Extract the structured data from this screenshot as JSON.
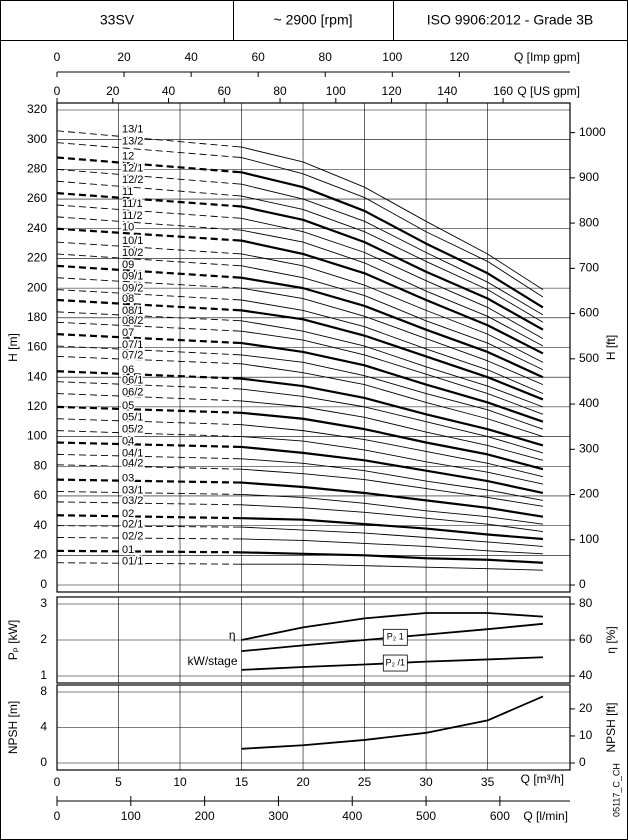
{
  "header": {
    "model": "33SV",
    "speed": "~ 2900 [rpm]",
    "standard": "ISO 9906:2012 - Grade 3B"
  },
  "code": "05117_C_CH",
  "x_axes": [
    {
      "label": "Q [Imp gpm]",
      "lim": [
        0,
        153
      ],
      "ticks": [
        0,
        20,
        40,
        60,
        80,
        100,
        120
      ],
      "position": "top"
    },
    {
      "label": "Q [US gpm]",
      "lim": [
        0,
        184
      ],
      "ticks": [
        0,
        20,
        40,
        60,
        80,
        100,
        120,
        140,
        160
      ],
      "position": "top"
    },
    {
      "label": "Q [l/min]",
      "lim": [
        0,
        695
      ],
      "ticks": [
        0,
        100,
        200,
        300,
        400,
        500,
        600
      ],
      "position": "bottom"
    }
  ],
  "chart_data": [
    {
      "type": "line",
      "ylabel": "H [m]",
      "y2label": "H [ft]",
      "x": [
        0,
        15,
        20,
        25,
        30,
        35,
        39.5
      ],
      "xlim": [
        0,
        41.7
      ],
      "xticks": [
        0,
        5,
        10,
        15,
        20,
        25,
        30,
        35
      ],
      "ylim": [
        0,
        320
      ],
      "yticks": [
        0,
        20,
        40,
        60,
        80,
        100,
        120,
        140,
        160,
        180,
        200,
        220,
        240,
        260,
        280,
        300,
        320
      ],
      "y2lim": [
        0,
        1050
      ],
      "y2ticks": [
        0,
        100,
        200,
        300,
        400,
        500,
        600,
        700,
        800,
        900,
        1000
      ],
      "grid": true,
      "color": "#000000",
      "min_flow": 15,
      "series": [
        {
          "name": "13/1",
          "weight": "thin",
          "label": "left",
          "values": [
            306,
            295,
            285,
            268,
            245,
            223,
            199
          ]
        },
        {
          "name": "13/2",
          "weight": "thin",
          "label": "left",
          "values": [
            298,
            288,
            277,
            261,
            238,
            218,
            194
          ]
        },
        {
          "name": "12",
          "weight": "bold",
          "label": "left",
          "values": [
            288,
            278,
            268,
            252,
            230,
            210,
            187
          ]
        },
        {
          "name": "12/1",
          "weight": "thin",
          "label": "left",
          "values": [
            280,
            270,
            260,
            245,
            224,
            204,
            182
          ]
        },
        {
          "name": "12/2",
          "weight": "thin",
          "label": "left",
          "values": [
            272,
            262,
            253,
            238,
            218,
            199,
            177
          ]
        },
        {
          "name": "11",
          "weight": "bold",
          "label": "left",
          "values": [
            264,
            255,
            246,
            231,
            211,
            193,
            172
          ]
        },
        {
          "name": "11/1",
          "weight": "thin",
          "label": "left",
          "values": [
            256,
            247,
            238,
            224,
            205,
            187,
            166
          ]
        },
        {
          "name": "11/2",
          "weight": "thin",
          "label": "left",
          "values": [
            248,
            239,
            231,
            217,
            198,
            181,
            161
          ]
        },
        {
          "name": "10",
          "weight": "bold",
          "label": "left",
          "values": [
            240,
            232,
            223,
            210,
            192,
            175,
            156
          ]
        },
        {
          "name": "10/1",
          "weight": "thin",
          "label": "left",
          "values": [
            231,
            223,
            215,
            202,
            185,
            169,
            150
          ]
        },
        {
          "name": "10/2",
          "weight": "thin",
          "label": "left",
          "values": [
            223,
            215,
            207,
            195,
            178,
            163,
            145
          ]
        },
        {
          "name": "09",
          "weight": "bold",
          "label": "left",
          "values": [
            215,
            207,
            200,
            188,
            172,
            157,
            140
          ]
        },
        {
          "name": "09/1",
          "weight": "thin",
          "label": "left",
          "values": [
            207,
            200,
            193,
            181,
            166,
            151,
            135
          ]
        },
        {
          "name": "09/2",
          "weight": "thin",
          "label": "left",
          "values": [
            199,
            192,
            185,
            174,
            159,
            145,
            129
          ]
        },
        {
          "name": "08",
          "weight": "bold",
          "label": "left",
          "values": [
            192,
            185,
            179,
            168,
            154,
            140,
            125
          ]
        },
        {
          "name": "08/1",
          "weight": "thin",
          "label": "left",
          "values": [
            184,
            178,
            171,
            161,
            147,
            134,
            120
          ]
        },
        {
          "name": "08/2",
          "weight": "thin",
          "label": "left",
          "values": [
            177,
            171,
            165,
            155,
            142,
            129,
            115
          ]
        },
        {
          "name": "07",
          "weight": "bold",
          "label": "left",
          "values": [
            169,
            163,
            157,
            148,
            135,
            123,
            110
          ]
        },
        {
          "name": "07/1",
          "weight": "thin",
          "label": "left",
          "values": [
            161,
            155,
            150,
            141,
            129,
            118,
            105
          ]
        },
        {
          "name": "07/2",
          "weight": "thin",
          "label": "left",
          "values": [
            154,
            149,
            143,
            135,
            123,
            112,
            100
          ]
        },
        {
          "name": "06",
          "weight": "bold",
          "label": "left",
          "values": [
            144,
            139,
            134,
            126,
            115,
            105,
            94
          ]
        },
        {
          "name": "06/1",
          "weight": "thin",
          "label": "left",
          "values": [
            137,
            132,
            127,
            120,
            110,
            100,
            89
          ]
        },
        {
          "name": "06/2",
          "weight": "thin",
          "label": "left",
          "values": [
            129,
            124,
            120,
            113,
            103,
            94,
            84
          ]
        },
        {
          "name": "05",
          "weight": "bold",
          "label": "left",
          "values": [
            120,
            116,
            112,
            105,
            96,
            88,
            78
          ]
        },
        {
          "name": "05/1",
          "weight": "thin",
          "label": "left",
          "values": [
            112,
            108,
            104,
            98,
            90,
            82,
            73
          ]
        },
        {
          "name": "05/2",
          "weight": "thin",
          "label": "left",
          "values": [
            104,
            100,
            97,
            91,
            83,
            76,
            68
          ]
        },
        {
          "name": "04",
          "weight": "bold",
          "label": "left",
          "values": [
            96,
            93,
            89,
            84,
            77,
            70,
            62
          ]
        },
        {
          "name": "04/1",
          "weight": "thin",
          "label": "left",
          "values": [
            88,
            85,
            82,
            77,
            70,
            64,
            57
          ]
        },
        {
          "name": "04/2",
          "weight": "thin",
          "label": "left",
          "values": [
            81,
            78,
            75,
            71,
            65,
            59,
            53
          ]
        },
        {
          "name": "03",
          "weight": "bold",
          "label": "left",
          "values": [
            71,
            69,
            66,
            62,
            57,
            52,
            46
          ]
        },
        {
          "name": "03/1",
          "weight": "thin",
          "label": "left",
          "values": [
            63,
            61,
            59,
            55,
            50,
            46,
            41
          ]
        },
        {
          "name": "03/2",
          "weight": "thin",
          "label": "left",
          "values": [
            56,
            54,
            52,
            49,
            45,
            41,
            36
          ]
        },
        {
          "name": "02",
          "weight": "bold",
          "label": "left",
          "values": [
            47,
            45,
            44,
            41,
            38,
            34,
            31
          ]
        },
        {
          "name": "02/1",
          "weight": "thin",
          "label": "left",
          "values": [
            40,
            39,
            37,
            35,
            32,
            29,
            26
          ]
        },
        {
          "name": "02/2",
          "weight": "thin",
          "label": "left",
          "values": [
            32,
            31,
            30,
            28,
            26,
            23,
            21
          ]
        },
        {
          "name": "01",
          "weight": "bold",
          "label": "left",
          "values": [
            23,
            22,
            21,
            20,
            18,
            17,
            15
          ]
        },
        {
          "name": "01/1",
          "weight": "thin",
          "label": "left",
          "values": [
            15,
            14,
            14,
            13,
            12,
            11,
            10
          ]
        }
      ]
    },
    {
      "type": "line",
      "ylabel": "Pₚ [kW]",
      "y2label": "η [%]",
      "annotations": [
        "kW/stage"
      ],
      "x": [
        15,
        20,
        25,
        30,
        35,
        39.5
      ],
      "xlim": [
        0,
        41.7
      ],
      "xticks": [
        0,
        5,
        10,
        15,
        20,
        25,
        30,
        35
      ],
      "ylim": [
        1,
        3
      ],
      "yticks": [
        1,
        2,
        3
      ],
      "y2lim": [
        40,
        80
      ],
      "y2ticks": [
        40,
        60,
        80
      ],
      "grid": true,
      "color": "#000000",
      "series": [
        {
          "name": "η",
          "axis": "y2",
          "weight": "bold",
          "label": "start",
          "values": [
            60,
            67,
            72,
            75,
            75,
            73
          ]
        },
        {
          "name": "P₂ 1",
          "weight": "bold",
          "label": "box",
          "values": [
            1.69,
            1.85,
            2.0,
            2.15,
            2.3,
            2.45
          ]
        },
        {
          "name": "P₂ /1",
          "weight": "bold",
          "label": "box",
          "values": [
            1.17,
            1.25,
            1.32,
            1.4,
            1.46,
            1.52
          ]
        }
      ]
    },
    {
      "type": "line",
      "ylabel": "NPSH [m]",
      "y2label": "NPSH [ft]",
      "xlabel": "Q [m³/h]",
      "x": [
        15,
        20,
        25,
        30,
        35,
        39.5
      ],
      "xlim": [
        0,
        41.7
      ],
      "xticks": [
        0,
        5,
        10,
        15,
        20,
        25,
        30,
        35
      ],
      "ylim": [
        0,
        8
      ],
      "yticks": [
        0,
        4,
        8
      ],
      "y2lim": [
        0,
        26.25
      ],
      "y2ticks": [
        0,
        10,
        20
      ],
      "grid": true,
      "color": "#000000",
      "values": [
        1.6,
        2.0,
        2.6,
        3.4,
        4.8,
        7.5
      ]
    }
  ]
}
